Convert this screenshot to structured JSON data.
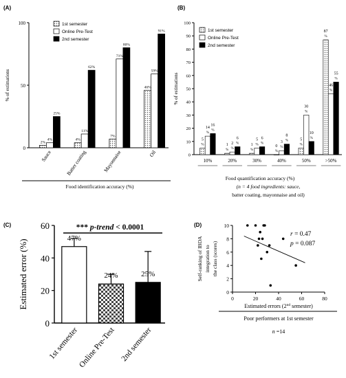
{
  "chart_data": [
    {
      "panel": "(A)",
      "type": "bar",
      "ylabel": "% of estimations",
      "xlabel": "Food identification accuracy (%)",
      "ylim": [
        0,
        100
      ],
      "yticks": [
        "0",
        "50",
        "100"
      ],
      "legend_position": "top-left",
      "categories": [
        "Sauce",
        "Batter coating",
        "Mayonnaise",
        "Oil"
      ],
      "series": [
        {
          "name": "1st semester",
          "values": [
            2,
            4,
            7,
            46
          ],
          "labels": [
            "2%",
            "4%",
            "7%",
            "46%"
          ],
          "fill": "dotted"
        },
        {
          "name": "Online Pre-Test",
          "values": [
            4,
            11,
            71,
            59
          ],
          "labels": [
            "4%",
            "11%",
            "71%",
            "59%"
          ],
          "fill": "white"
        },
        {
          "name": "2nd semester",
          "values": [
            25,
            62,
            80,
            91
          ],
          "labels": [
            "25%",
            "62%",
            "80%",
            "91%"
          ],
          "fill": "black"
        }
      ]
    },
    {
      "panel": "(B)",
      "type": "bar",
      "ylabel": "% of estimations",
      "xlabel": "Food quantification accuracy (%)",
      "note": "(n = 4 food ingredients: sauce, batter coating, mayonnaise and oil)",
      "ylim": [
        0,
        100
      ],
      "yticks": [
        "0",
        "10",
        "20",
        "30",
        "40",
        "50",
        "60",
        "70",
        "80",
        "90",
        "100"
      ],
      "legend_position": "top-left",
      "categories": [
        "10%",
        "20%",
        "30%",
        "40%",
        "50%",
        ">50%"
      ],
      "series": [
        {
          "name": "1st semester",
          "values": [
            5,
            1,
            1,
            0,
            5,
            87
          ],
          "fill": "dotted"
        },
        {
          "name": "Online Pre-Test",
          "values": [
            14,
            2,
            5,
            3,
            30,
            46
          ],
          "fill": "white"
        },
        {
          "name": "2nd semester",
          "values": [
            16,
            6,
            6,
            8,
            10,
            55
          ],
          "fill": "black"
        }
      ]
    },
    {
      "panel": "(C)",
      "type": "bar",
      "ylabel": "Estimated error (%)",
      "ylim": [
        0,
        60
      ],
      "yticks": [
        "0",
        "20",
        "40",
        "60"
      ],
      "annotation": "*** p-trend < 0.0001",
      "categories": [
        "1st semester",
        "Online Pre-Test",
        "2nd semester"
      ],
      "values": [
        47,
        24,
        25
      ],
      "errors": [
        5,
        6,
        19
      ],
      "labels": [
        "47%",
        "24%",
        "25%"
      ],
      "fills": [
        "white",
        "checker",
        "black"
      ]
    },
    {
      "panel": "(D)",
      "type": "scatter",
      "ylabel": "Self-ranking of IBDA integration to the class (scores)",
      "xlabel": "Estimated errors (2nd semester)",
      "xlabel2": "Poor performers at 1st semester",
      "n_label": "n =14",
      "xlim": [
        0,
        80
      ],
      "ylim": [
        0,
        10
      ],
      "xticks": [
        "0",
        "20",
        "40",
        "60",
        "80"
      ],
      "yticks": [
        "0",
        "2",
        "4",
        "6",
        "8",
        "10"
      ],
      "r_text": "r  =  0.47",
      "p_text": "p  = 0.087",
      "points": [
        {
          "x": 13,
          "y": 10
        },
        {
          "x": 20,
          "y": 10
        },
        {
          "x": 22,
          "y": 7
        },
        {
          "x": 23,
          "y": 8
        },
        {
          "x": 24,
          "y": 9
        },
        {
          "x": 25,
          "y": 5
        },
        {
          "x": 26,
          "y": 8
        },
        {
          "x": 27,
          "y": 10
        },
        {
          "x": 28,
          "y": 10
        },
        {
          "x": 30,
          "y": 6
        },
        {
          "x": 32,
          "y": 7
        },
        {
          "x": 33,
          "y": 1
        },
        {
          "x": 44,
          "y": 8
        },
        {
          "x": 55,
          "y": 4
        }
      ],
      "regression": {
        "x0": 10,
        "y0": 8.4,
        "x1": 63,
        "y1": 4.4
      }
    }
  ]
}
